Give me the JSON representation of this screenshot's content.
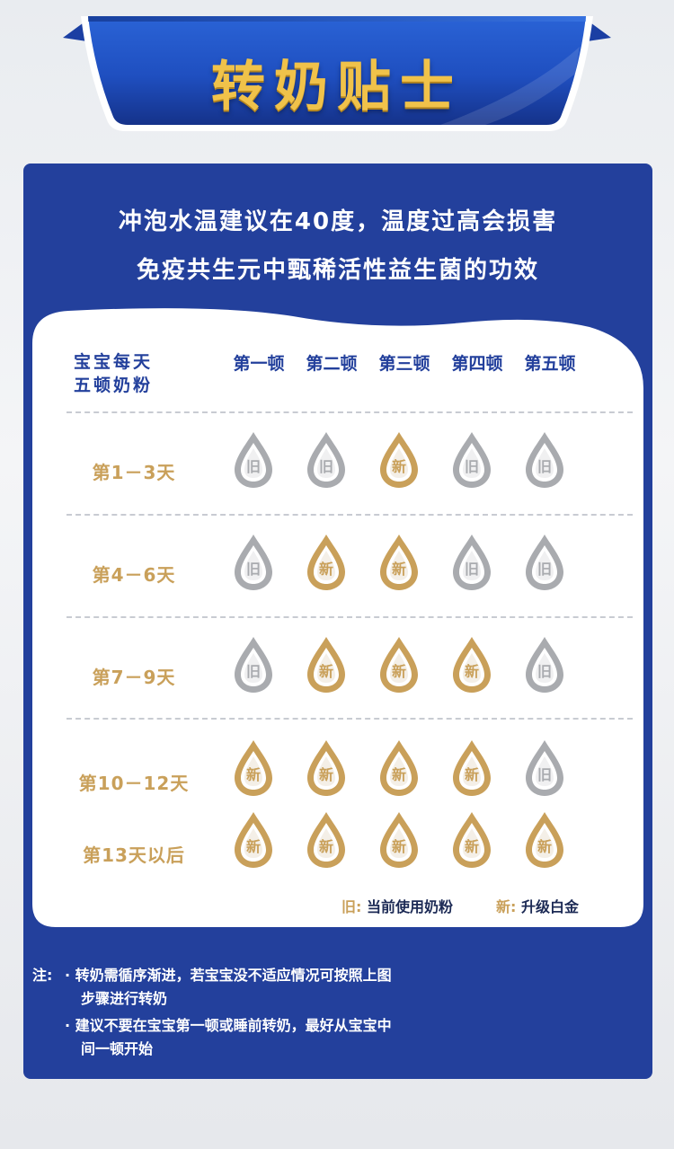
{
  "banner": {
    "title": "转奶贴士"
  },
  "headline": {
    "line1": "冲泡水温建议在40度，温度过高会损害",
    "line2": "免疫共生元中甄稀活性益生菌的功效"
  },
  "table": {
    "corner_line1": "宝宝每天",
    "corner_line2": "五顿奶粉",
    "meals": [
      "第一顿",
      "第二顿",
      "第三顿",
      "第四顿",
      "第五顿"
    ],
    "rows": [
      {
        "label": "第1－3天",
        "cells": [
          "旧",
          "旧",
          "新",
          "旧",
          "旧"
        ]
      },
      {
        "label": "第4－6天",
        "cells": [
          "旧",
          "新",
          "新",
          "旧",
          "旧"
        ]
      },
      {
        "label": "第7－9天",
        "cells": [
          "旧",
          "新",
          "新",
          "新",
          "旧"
        ]
      },
      {
        "label": "第10－12天",
        "cells": [
          "新",
          "新",
          "新",
          "新",
          "旧"
        ]
      },
      {
        "label": "第13天以后",
        "cells": [
          "新",
          "新",
          "新",
          "新",
          "新"
        ]
      }
    ]
  },
  "legend": {
    "old_key": "旧:",
    "old_text": "当前使用奶粉",
    "new_key": "新:",
    "new_text": "升级白金"
  },
  "notes": {
    "prefix": "注:",
    "bullet1_line1": "· 转奶需循序渐进，若宝宝没不适应情况可按照上图",
    "bullet1_line2": "步骤进行转奶",
    "bullet2_line1": "· 建议不要在宝宝第一顿或睡前转奶，最好从宝宝中",
    "bullet2_line2": "间一顿开始"
  },
  "colors": {
    "panel_blue": "#23409c",
    "gold": "#c9a05a",
    "silver": "#a9abaf",
    "banner_title": "#f0c24a"
  },
  "icons": {
    "old": "silver-drop-icon",
    "new": "gold-drop-icon"
  }
}
